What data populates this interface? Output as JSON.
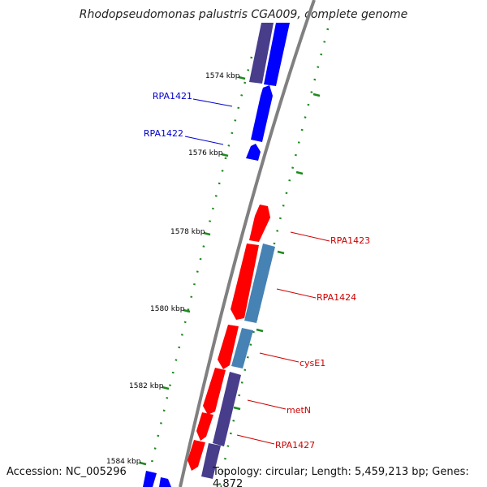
{
  "title": "Rhodopseudomonas palustris CGA009, complete genome",
  "footer": {
    "accession": "Accession: NC_005296",
    "info": "Topology: circular; Length: 5,459,213 bp; Genes: 4,872"
  },
  "colors": {
    "backbone": "#808080",
    "tick": "#1e8a1e",
    "forward_label": "#0000cc",
    "reverse_label": "#cc0000",
    "blue_gene": "#0000ff",
    "slate_gene": "#483d8b",
    "red_gene": "#ff0000",
    "steel_gene": "#4682b4"
  },
  "scale": {
    "ticks": [
      {
        "label": "1574 kbp"
      },
      {
        "label": "1576 kbp"
      },
      {
        "label": "1578 kbp"
      },
      {
        "label": "1580 kbp"
      },
      {
        "label": "1582 kbp"
      },
      {
        "label": "1584 kbp"
      }
    ]
  },
  "genes_forward": [
    {
      "label": "RPA1421"
    },
    {
      "label": "RPA1422"
    }
  ],
  "genes_reverse": [
    {
      "label": "RPA1423"
    },
    {
      "label": "RPA1424"
    },
    {
      "label": "cysE1"
    },
    {
      "label": "metN"
    },
    {
      "label": "RPA1427"
    }
  ]
}
